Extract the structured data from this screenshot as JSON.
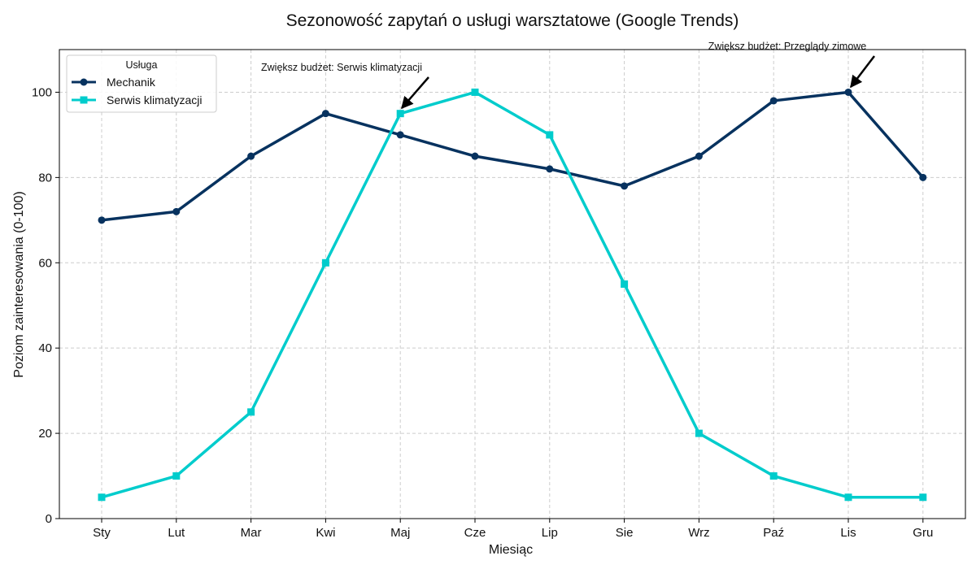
{
  "chart_data": {
    "type": "line",
    "title": "Sezonowość zapytań o usługi warsztatowe (Google Trends)",
    "xlabel": "Miesiąc",
    "ylabel": "Poziom zainteresowania (0-100)",
    "ylim": [
      0,
      110
    ],
    "yticks": [
      0,
      20,
      40,
      60,
      80,
      100
    ],
    "grid": true,
    "legend_position": "top-left",
    "legend_title": "Usługa",
    "categories": [
      "Sty",
      "Lut",
      "Mar",
      "Kwi",
      "Maj",
      "Cze",
      "Lip",
      "Sie",
      "Wrz",
      "Paź",
      "Lis",
      "Gru"
    ],
    "series": [
      {
        "name": "Mechanik",
        "color": "#07325f",
        "marker": "circle",
        "values": [
          70,
          72,
          85,
          95,
          90,
          85,
          82,
          78,
          85,
          98,
          100,
          80
        ]
      },
      {
        "name": "Serwis klimatyzacji",
        "color": "#00cccc",
        "marker": "square",
        "values": [
          5,
          10,
          25,
          60,
          95,
          100,
          90,
          55,
          20,
          10,
          5,
          5
        ]
      }
    ],
    "annotations": [
      {
        "text": "Zwiększ budżet: Serwis klimatyzacji",
        "target_category": "Maj",
        "target_value": 95
      },
      {
        "text": "Zwiększ budżet: Przeglądy zimowe",
        "target_category": "Lis",
        "target_value": 100
      }
    ]
  }
}
